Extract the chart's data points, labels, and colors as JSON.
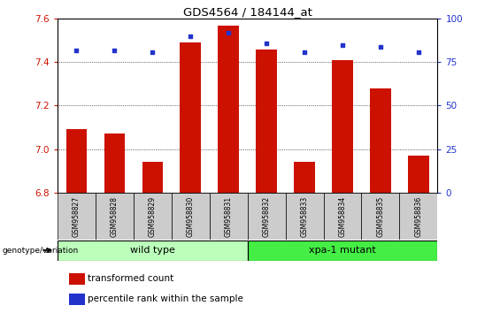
{
  "title": "GDS4564 / 184144_at",
  "samples": [
    "GSM958827",
    "GSM958828",
    "GSM958829",
    "GSM958830",
    "GSM958831",
    "GSM958832",
    "GSM958833",
    "GSM958834",
    "GSM958835",
    "GSM958836"
  ],
  "transformed_count": [
    7.09,
    7.07,
    6.94,
    7.49,
    7.57,
    7.46,
    6.94,
    7.41,
    7.28,
    6.97
  ],
  "percentile_rank": [
    82,
    82,
    81,
    90,
    92,
    86,
    81,
    85,
    84,
    81
  ],
  "ylim_left": [
    6.8,
    7.6
  ],
  "ylim_right": [
    0,
    100
  ],
  "yticks_left": [
    6.8,
    7.0,
    7.2,
    7.4,
    7.6
  ],
  "yticks_right": [
    0,
    25,
    50,
    75,
    100
  ],
  "bar_color": "#cc1100",
  "dot_color": "#2233cc",
  "bar_width": 0.55,
  "wild_type_indices": [
    0,
    1,
    2,
    3,
    4
  ],
  "mutant_indices": [
    5,
    6,
    7,
    8,
    9
  ],
  "wild_type_label": "wild type",
  "mutant_label": "xpa-1 mutant",
  "genotype_label": "genotype/variation",
  "legend_bar_label": "transformed count",
  "legend_dot_label": "percentile rank within the sample",
  "wild_type_color": "#bbffbb",
  "mutant_color": "#44ee44",
  "label_bg_color": "#cccccc"
}
